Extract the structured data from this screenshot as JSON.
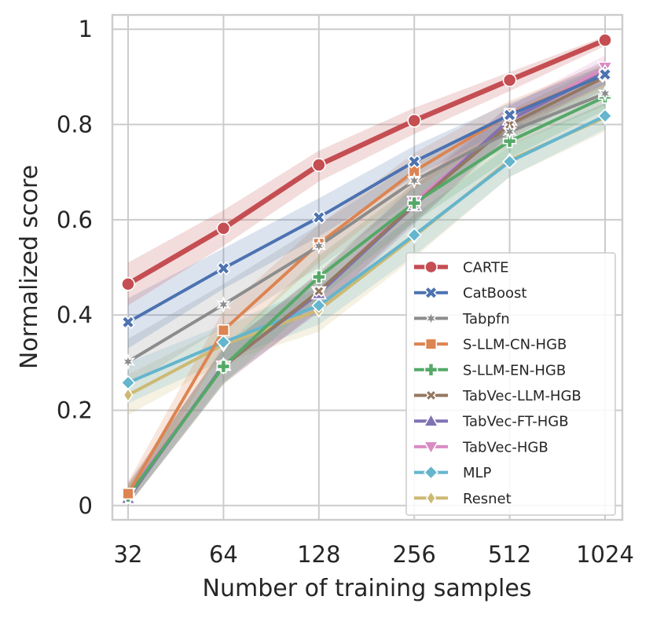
{
  "chart_data": {
    "type": "line",
    "title": "",
    "xlabel": "Number of training samples",
    "ylabel": "Normalized score",
    "x": [
      32,
      64,
      128,
      256,
      512,
      1024
    ],
    "x_tick_labels": [
      "32",
      "64",
      "128",
      "256",
      "512",
      "1024"
    ],
    "y_ticks": [
      0,
      0.2,
      0.4,
      0.6,
      0.8,
      1
    ],
    "y_tick_labels": [
      "0",
      "0.2",
      "0.4",
      "0.6",
      "0.8",
      "1"
    ],
    "ylim": [
      -0.03,
      1.03
    ],
    "grid": true,
    "legend_position": "bottom-right",
    "series": [
      {
        "name": "CARTE",
        "color": "#c44e52",
        "marker": "circle",
        "values": [
          0.465,
          0.582,
          0.715,
          0.808,
          0.893,
          0.977
        ],
        "lower": [
          0.42,
          0.545,
          0.68,
          0.78,
          0.87,
          0.965
        ],
        "upper": [
          0.51,
          0.62,
          0.745,
          0.835,
          0.91,
          0.985
        ]
      },
      {
        "name": "CatBoost",
        "color": "#4c72b0",
        "marker": "x-filled",
        "values": [
          0.385,
          0.498,
          0.605,
          0.722,
          0.82,
          0.905
        ],
        "lower": [
          0.33,
          0.455,
          0.565,
          0.69,
          0.795,
          0.885
        ],
        "upper": [
          0.435,
          0.54,
          0.645,
          0.755,
          0.845,
          0.925
        ]
      },
      {
        "name": "Tabpfn",
        "color": "#8c8c8c",
        "marker": "star",
        "values": [
          0.302,
          0.422,
          0.545,
          0.682,
          0.785,
          0.865
        ],
        "lower": [
          0.25,
          0.375,
          0.5,
          0.645,
          0.755,
          0.84
        ],
        "upper": [
          0.35,
          0.465,
          0.59,
          0.72,
          0.815,
          0.89
        ]
      },
      {
        "name": "S-LLM-CN-HGB",
        "color": "#dd8452",
        "marker": "square",
        "values": [
          0.025,
          0.368,
          0.55,
          0.702,
          0.822,
          0.905
        ],
        "lower": [
          0.0,
          0.33,
          0.51,
          0.665,
          0.79,
          0.88
        ],
        "upper": [
          0.05,
          0.41,
          0.59,
          0.74,
          0.85,
          0.93
        ]
      },
      {
        "name": "S-LLM-EN-HGB",
        "color": "#55a868",
        "marker": "plus",
        "values": [
          0.02,
          0.292,
          0.48,
          0.635,
          0.765,
          0.858
        ],
        "lower": [
          0.0,
          0.255,
          0.435,
          0.595,
          0.73,
          0.83
        ],
        "upper": [
          0.045,
          0.33,
          0.525,
          0.675,
          0.8,
          0.885
        ]
      },
      {
        "name": "TabVec-LLM-HGB",
        "color": "#937860",
        "marker": "x",
        "values": [
          0.02,
          0.292,
          0.45,
          0.632,
          0.8,
          0.9
        ],
        "lower": [
          0.0,
          0.255,
          0.41,
          0.595,
          0.77,
          0.875
        ],
        "upper": [
          0.045,
          0.33,
          0.49,
          0.67,
          0.83,
          0.925
        ]
      },
      {
        "name": "TabVec-FT-HGB",
        "color": "#8172b3",
        "marker": "triangle-up",
        "values": [
          0.015,
          0.295,
          0.445,
          0.63,
          0.81,
          0.91
        ],
        "lower": [
          0.0,
          0.26,
          0.405,
          0.59,
          0.78,
          0.885
        ],
        "upper": [
          0.04,
          0.335,
          0.485,
          0.67,
          0.84,
          0.935
        ]
      },
      {
        "name": "TabVec-HGB",
        "color": "#da8bc3",
        "marker": "triangle-down",
        "values": [
          0.025,
          0.292,
          0.448,
          0.638,
          0.808,
          0.92
        ],
        "lower": [
          0.0,
          0.255,
          0.408,
          0.6,
          0.775,
          0.895
        ],
        "upper": [
          0.05,
          0.33,
          0.488,
          0.678,
          0.84,
          0.945
        ]
      },
      {
        "name": "MLP",
        "color": "#64b5cd",
        "marker": "diamond",
        "values": [
          0.258,
          0.343,
          0.42,
          0.568,
          0.722,
          0.818
        ],
        "lower": [
          0.215,
          0.305,
          0.38,
          0.525,
          0.69,
          0.79
        ],
        "upper": [
          0.3,
          0.38,
          0.46,
          0.61,
          0.755,
          0.845
        ]
      },
      {
        "name": "Resnet",
        "color": "#ccb974",
        "marker": "thin-diamond",
        "values": [
          0.232,
          0.338,
          0.41,
          0.565,
          0.725,
          0.815
        ],
        "lower": [
          0.19,
          0.3,
          0.365,
          0.52,
          0.69,
          0.785
        ],
        "upper": [
          0.275,
          0.375,
          0.455,
          0.61,
          0.76,
          0.845
        ]
      }
    ]
  }
}
